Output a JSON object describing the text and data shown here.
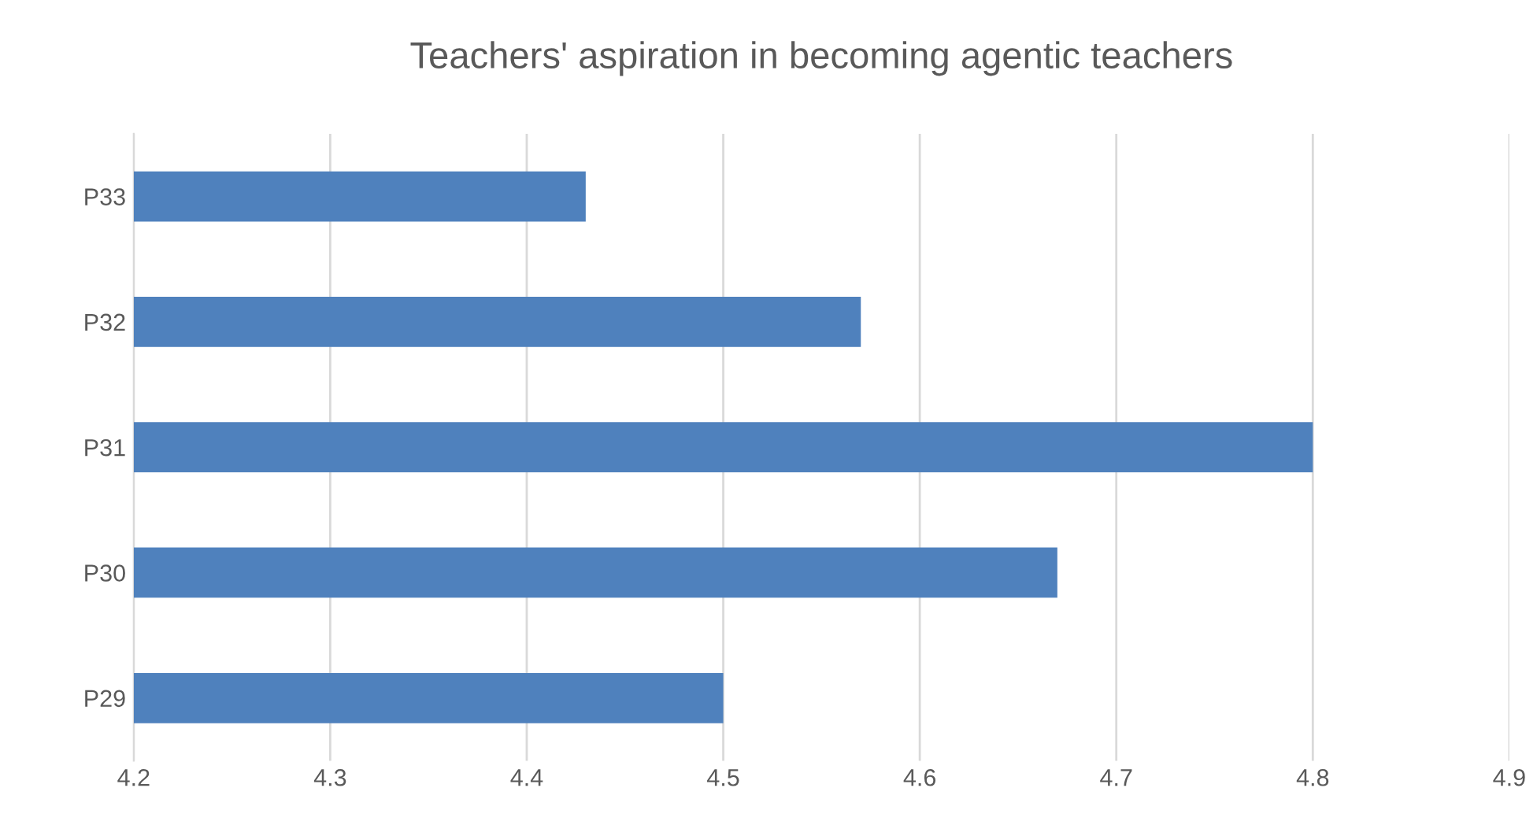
{
  "chart_data": {
    "type": "bar",
    "orientation": "horizontal",
    "title": "Teachers' aspiration in becoming agentic teachers",
    "categories": [
      "P33",
      "P32",
      "P31",
      "P30",
      "P29"
    ],
    "values": [
      4.43,
      4.57,
      4.8,
      4.67,
      4.5
    ],
    "color": "#4f81bd",
    "xlim": [
      4.2,
      4.9
    ],
    "xticks": [
      4.2,
      4.3,
      4.4,
      4.5,
      4.6,
      4.7,
      4.8,
      4.9
    ],
    "grid": "x"
  }
}
